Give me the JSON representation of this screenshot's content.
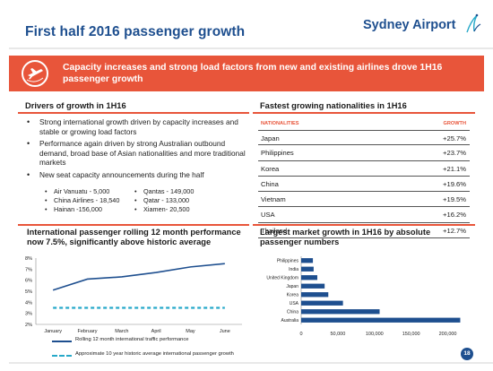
{
  "title": "First half 2016 passenger growth",
  "logo": {
    "text": "Sydney Airport"
  },
  "banner": {
    "icon": "plane-globe-icon",
    "text": "Capacity increases and strong load factors from new and existing airlines drove 1H16 passenger growth"
  },
  "drivers": {
    "heading": "Drivers of growth in 1H16",
    "bullets": [
      "Strong international growth driven by capacity increases and stable or growing load factors",
      "Performance again driven by strong Australian outbound demand, broad base of Asian nationalities and more traditional markets",
      "New seat capacity announcements during the half"
    ],
    "seat_left": [
      "Air Vanuatu - 5,000",
      "China Airlines - 18,540",
      "Hainan -156,000"
    ],
    "seat_right": [
      "Qantas - 149,000",
      "Qatar - 133,000",
      "Xiamen- 20,500"
    ]
  },
  "nationalities": {
    "heading": "Fastest growing nationalities in 1H16",
    "col_nationality": "NATIONALITIES",
    "col_growth": "GROWTH",
    "rows": [
      {
        "name": "Japan",
        "growth": "+25.7%"
      },
      {
        "name": "Philippines",
        "growth": "+23.7%"
      },
      {
        "name": "Korea",
        "growth": "+21.1%"
      },
      {
        "name": "China",
        "growth": "+19.6%"
      },
      {
        "name": "Vietnam",
        "growth": "+19.5%"
      },
      {
        "name": "USA",
        "growth": "+16.2%"
      },
      {
        "name": "Thailand",
        "growth": "+12.7%"
      }
    ]
  },
  "chart_data": [
    {
      "type": "line",
      "title": "International passenger rolling 12 month performance now 7.5%, significantly above historic average",
      "categories": [
        "January",
        "February",
        "March",
        "April",
        "May",
        "June"
      ],
      "y_ticks": [
        "2%",
        "3%",
        "4%",
        "5%",
        "6%",
        "7%",
        "8%"
      ],
      "ylim": [
        2,
        8
      ],
      "grid": false,
      "series": [
        {
          "name": "Rolling 12 month international traffic performance",
          "values": [
            5.1,
            6.1,
            6.3,
            6.7,
            7.2,
            7.5
          ],
          "color": "#1e4f8f",
          "style": "solid"
        },
        {
          "name": "Approximate 10 year historic average international passenger growth",
          "values": [
            3.5,
            3.5,
            3.5,
            3.5,
            3.5,
            3.5
          ],
          "color": "#27a9c9",
          "style": "dashed"
        }
      ],
      "legend_position": "bottom"
    },
    {
      "type": "bar",
      "orientation": "horizontal",
      "title": "Largest market growth in 1H16 by absolute passenger numbers",
      "categories": [
        "Philippines",
        "India",
        "United Kingdom",
        "Japan",
        "Korea",
        "USA",
        "China",
        "Australia"
      ],
      "values": [
        16000,
        17000,
        22000,
        32000,
        37000,
        57000,
        107000,
        217000
      ],
      "x_ticks": [
        "0",
        "50,000",
        "100,000",
        "150,000",
        "200,000"
      ],
      "xlim": [
        0,
        225000
      ],
      "color": "#1e4f8f",
      "grid": false
    }
  ],
  "page_number": "18"
}
